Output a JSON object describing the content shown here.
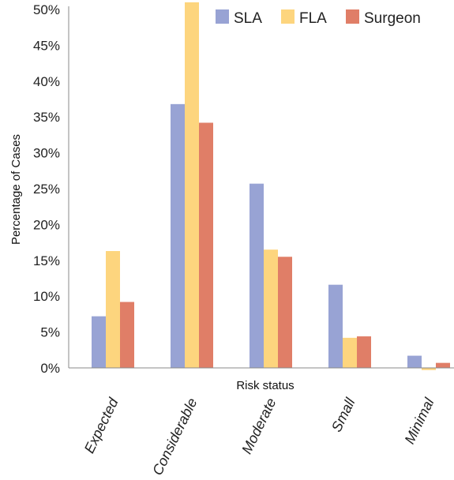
{
  "chart_data": {
    "type": "bar",
    "title": "",
    "xlabel": "Risk status",
    "ylabel": "Percentage of  Cases",
    "categories": [
      "Expected",
      "Considerable",
      "Moderate",
      "Small",
      "Minimal"
    ],
    "series": [
      {
        "name": "SLA",
        "color": "#98A3D4",
        "values": [
          7.2,
          36.8,
          25.7,
          11.6,
          1.7
        ]
      },
      {
        "name": "FLA",
        "color": "#FDD57E",
        "values": [
          16.3,
          51.0,
          16.5,
          4.2,
          -0.3
        ]
      },
      {
        "name": "Surgeon",
        "color": "#E07E67",
        "values": [
          9.2,
          34.2,
          15.5,
          4.4,
          0.7
        ]
      }
    ],
    "ylim": [
      0,
      50
    ],
    "yticks": [
      "0%",
      "5%",
      "10%",
      "15%",
      "20%",
      "25%",
      "30%",
      "35%",
      "40%",
      "45%",
      "50%"
    ],
    "legend_position": "top-right",
    "grid": false
  }
}
